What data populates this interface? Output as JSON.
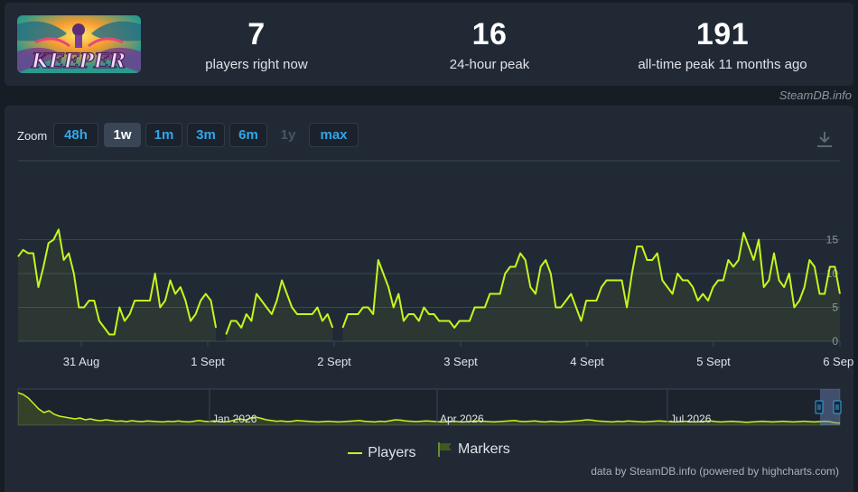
{
  "stats": [
    {
      "value": "7",
      "label": "players right now"
    },
    {
      "value": "16",
      "label": "24-hour peak"
    },
    {
      "value": "191",
      "label": "all-time peak 11 months ago"
    }
  ],
  "game_logo_text": "KEEPER",
  "credit_top": "SteamDB.info",
  "zoom": {
    "label": "Zoom",
    "buttons": [
      {
        "label": "48h",
        "state": "normal"
      },
      {
        "label": "1w",
        "state": "active"
      },
      {
        "label": "1m",
        "state": "normal"
      },
      {
        "label": "3m",
        "state": "normal"
      },
      {
        "label": "6m",
        "state": "normal"
      },
      {
        "label": "1y",
        "state": "disabled"
      },
      {
        "label": "max",
        "state": "normal"
      }
    ]
  },
  "legend": {
    "players": "Players",
    "markers": "Markers"
  },
  "credit_bottom": "data by SteamDB.info (powered by highcharts.com)",
  "colors": {
    "line": "#c6f51e",
    "accent": "#2fa7ea",
    "grid": "#3a4555",
    "marker": "#3e5a1e"
  },
  "chart_data": {
    "type": "line",
    "series": [
      {
        "name": "Players"
      }
    ],
    "y_ticks": [
      0,
      5,
      10,
      15
    ],
    "ylim": [
      0,
      20
    ],
    "x_ticks": [
      "31 Aug",
      "1 Sept",
      "2 Sept",
      "3 Sept",
      "4 Sept",
      "5 Sept",
      "6 Sept"
    ],
    "x_tick_days": [
      1,
      2,
      3,
      4,
      5,
      6,
      7
    ],
    "x_range_days": [
      0.5,
      7.0
    ],
    "values": [
      12.5,
      13.5,
      13,
      13,
      8,
      11,
      14.5,
      15,
      16.5,
      12,
      13,
      10,
      5,
      5,
      6,
      6,
      3,
      2,
      1,
      1,
      5,
      3,
      4,
      6,
      6,
      6,
      6,
      10,
      5,
      6,
      9,
      7,
      8,
      6,
      3,
      4,
      6,
      7,
      6,
      2,
      null,
      1,
      3,
      3,
      2,
      4,
      3,
      7,
      6,
      5,
      4,
      6,
      9,
      7,
      5,
      4,
      4,
      4,
      4,
      5,
      3,
      4,
      2,
      null,
      2,
      4,
      4,
      4,
      5,
      5,
      4,
      12,
      10,
      8,
      5,
      7,
      3,
      4,
      4,
      3,
      5,
      4,
      4,
      3,
      3,
      3,
      2,
      3,
      3,
      3,
      5,
      5,
      5,
      7,
      7,
      7,
      10,
      11,
      11,
      13,
      12,
      8,
      7,
      11,
      12,
      10,
      5,
      5,
      6,
      7,
      5,
      3,
      6,
      6,
      6,
      8,
      9,
      9,
      9,
      9,
      5,
      10,
      14,
      14,
      12,
      12,
      13,
      9,
      8,
      7,
      10,
      9,
      9,
      8,
      6,
      7,
      6,
      8,
      9,
      9,
      12,
      11,
      12,
      16,
      14,
      12,
      15,
      8,
      9,
      13,
      9,
      8,
      10,
      5,
      6,
      8,
      12,
      11,
      7,
      7,
      11,
      11,
      7
    ],
    "navigator": {
      "x_ticks": [
        "Jan 2026",
        "Apr 2026",
        "Jul 2026"
      ],
      "values": [
        180,
        170,
        150,
        120,
        90,
        70,
        80,
        60,
        50,
        45,
        40,
        35,
        40,
        30,
        35,
        28,
        25,
        30,
        26,
        22,
        24,
        20,
        25,
        22,
        20,
        24,
        22,
        20,
        18,
        22,
        20,
        24,
        20,
        18,
        22,
        26,
        22,
        20,
        24,
        20,
        18,
        22,
        30,
        35,
        28,
        40,
        45,
        38,
        30,
        26,
        22,
        24,
        20,
        22,
        26,
        24,
        22,
        20,
        18,
        20,
        22,
        20,
        18,
        20,
        22,
        24,
        26,
        22,
        20,
        18,
        22,
        20,
        25,
        30,
        28,
        24,
        22,
        20,
        22,
        24,
        22,
        20,
        18,
        20,
        22,
        20,
        18,
        20,
        22,
        24,
        22,
        20,
        18,
        20,
        22,
        24,
        26,
        22,
        20,
        22,
        24,
        20,
        18,
        22,
        20,
        18,
        20,
        22,
        24,
        26,
        30,
        28,
        24,
        22,
        20,
        18,
        22,
        20,
        24,
        22,
        20,
        18,
        20,
        22,
        24,
        22,
        20,
        18,
        20,
        22,
        20,
        18,
        20,
        22,
        24,
        20,
        18,
        20,
        22,
        20,
        18,
        16,
        18,
        20,
        22,
        20,
        18,
        20,
        22,
        20,
        18,
        20,
        22,
        20,
        18,
        20,
        22,
        20,
        14,
        12
      ]
    }
  }
}
